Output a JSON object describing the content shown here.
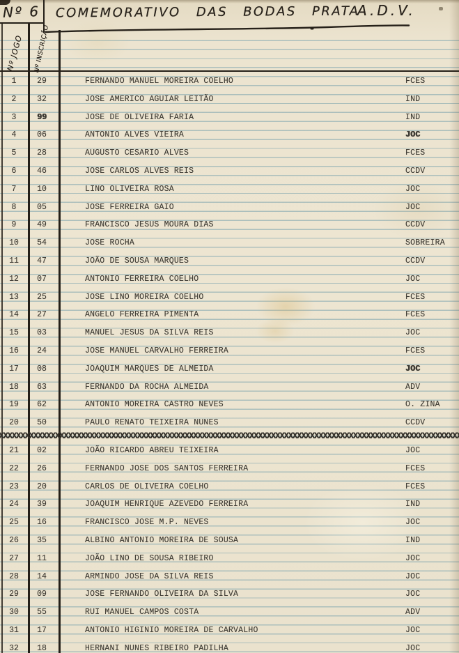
{
  "header": {
    "number_label": "Nº 6",
    "title_main": "COMEMORATIVO DAS BODAS PRATA",
    "title_suffix": "A.D.V."
  },
  "table": {
    "col1_header": "Nº JOGO",
    "col2_header": "Nº INSCRIÇÃO",
    "separator": "XXXXXXXXXXXXXXXXXXXXXXXXXXXXXXXXXXXXXXXXXXXXXXXXXXXXXXXXXXXXXXXXXXXXXXXXXXXXXXXXXXXXXXXXXXXXXXXXXXXXXXXXXXXXXXXXXXXXXXXXXXXXXXXXXX",
    "separator_after_row": 20,
    "rows": [
      {
        "n": "1",
        "insc": "29",
        "name": "FERNANDO MANUEL MOREIRA COELHO",
        "code": "FCES"
      },
      {
        "n": "2",
        "insc": "32",
        "name": "JOSE AMERICO AGUIAR LEITÃO",
        "code": "IND"
      },
      {
        "n": "3",
        "insc": "99",
        "name": "JOSE DE OLIVEIRA FARIA",
        "code": "IND",
        "insc_overstrike": true
      },
      {
        "n": "4",
        "insc": "06",
        "name": "ANTONIO ALVES VIEIRA",
        "code": "JOC",
        "code_overstrike": true
      },
      {
        "n": "5",
        "insc": "28",
        "name": "AUGUSTO CESARIO ALVES",
        "code": "FCES"
      },
      {
        "n": "6",
        "insc": "46",
        "name": "JOSE CARLOS ALVES REIS",
        "code": "CCDV"
      },
      {
        "n": "7",
        "insc": "10",
        "name": "LINO OLIVEIRA ROSA",
        "code": "JOC"
      },
      {
        "n": "8",
        "insc": "05",
        "name": "JOSE FERREIRA GAIO",
        "code": "JOC"
      },
      {
        "n": "9",
        "insc": "49",
        "name": "FRANCISCO JESUS MOURA DIAS",
        "code": "CCDV"
      },
      {
        "n": "10",
        "insc": "54",
        "name": "JOSE ROCHA",
        "code": "SOBREIRA"
      },
      {
        "n": "11",
        "insc": "47",
        "name": "JOÃO DE SOUSA MARQUES",
        "code": "CCDV"
      },
      {
        "n": "12",
        "insc": "07",
        "name": "ANTONIO FERREIRA COELHO",
        "code": "JOC"
      },
      {
        "n": "13",
        "insc": "25",
        "name": "JOSE LINO MOREIRA COELHO",
        "code": "FCES"
      },
      {
        "n": "14",
        "insc": "27",
        "name": "ANGELO FERREIRA PIMENTA",
        "code": "FCES"
      },
      {
        "n": "15",
        "insc": "03",
        "name": "MANUEL JESUS DA SILVA REIS",
        "code": "JOC"
      },
      {
        "n": "16",
        "insc": "24",
        "name": "JOSE MANUEL CARVALHO FERREIRA",
        "code": "FCES"
      },
      {
        "n": "17",
        "insc": "08",
        "name": "JOAQUIM MARQUES DE ALMEIDA",
        "code": "JOC",
        "code_overstrike": true
      },
      {
        "n": "18",
        "insc": "63",
        "name": "FERNANDO DA ROCHA ALMEIDA",
        "code": "ADV"
      },
      {
        "n": "19",
        "insc": "62",
        "name": "ANTONIO MOREIRA CASTRO NEVES",
        "code": "O. ZINA"
      },
      {
        "n": "20",
        "insc": "50",
        "name": "PAULO RENATO TEIXEIRA NUNES",
        "code": "CCDV"
      },
      {
        "n": "21",
        "insc": "02",
        "name": "JOÃO RICARDO ABREU TEIXEIRA",
        "code": "JOC"
      },
      {
        "n": "22",
        "insc": "26",
        "name": "FERNANDO JOSE DOS SANTOS FERREIRA",
        "code": "FCES"
      },
      {
        "n": "23",
        "insc": "20",
        "name": "CARLOS DE OLIVEIRA COELHO",
        "code": "FCES"
      },
      {
        "n": "24",
        "insc": "39",
        "name": "JOAQUIM HENRIQUE AZEVEDO FERREIRA",
        "code": "IND"
      },
      {
        "n": "25",
        "insc": "16",
        "name": "FRANCISCO JOSE M.P. NEVES",
        "code": "JOC"
      },
      {
        "n": "26",
        "insc": "35",
        "name": "ALBINO ANTONIO MOREIRA DE SOUSA",
        "code": "IND"
      },
      {
        "n": "27",
        "insc": "11",
        "name": "JOÃO LINO DE SOUSA RIBEIRO",
        "code": "JOC"
      },
      {
        "n": "28",
        "insc": "14",
        "name": "ARMINDO JOSE DA SILVA REIS",
        "code": "JOC"
      },
      {
        "n": "29",
        "insc": "09",
        "name": "JOSE FERNANDO OLIVEIRA DA SILVA",
        "code": "JOC"
      },
      {
        "n": "30",
        "insc": "55",
        "name": "RUI MANUEL CAMPOS COSTA",
        "code": "ADV"
      },
      {
        "n": "31",
        "insc": "17",
        "name": "ANTONIO HIGINIO MOREIRA DE CARVALHO",
        "code": "JOC"
      },
      {
        "n": "32",
        "insc": "18",
        "name": "HERNANI NUNES RIBEIRO PADILHA",
        "code": "JOC"
      }
    ]
  },
  "colors": {
    "paper": "#ece4d0",
    "ruled_line": "#76a0ac",
    "table_line": "#241f18",
    "typewriter_ink": "#3e3b34",
    "handwriting_ink": "#28221b"
  }
}
